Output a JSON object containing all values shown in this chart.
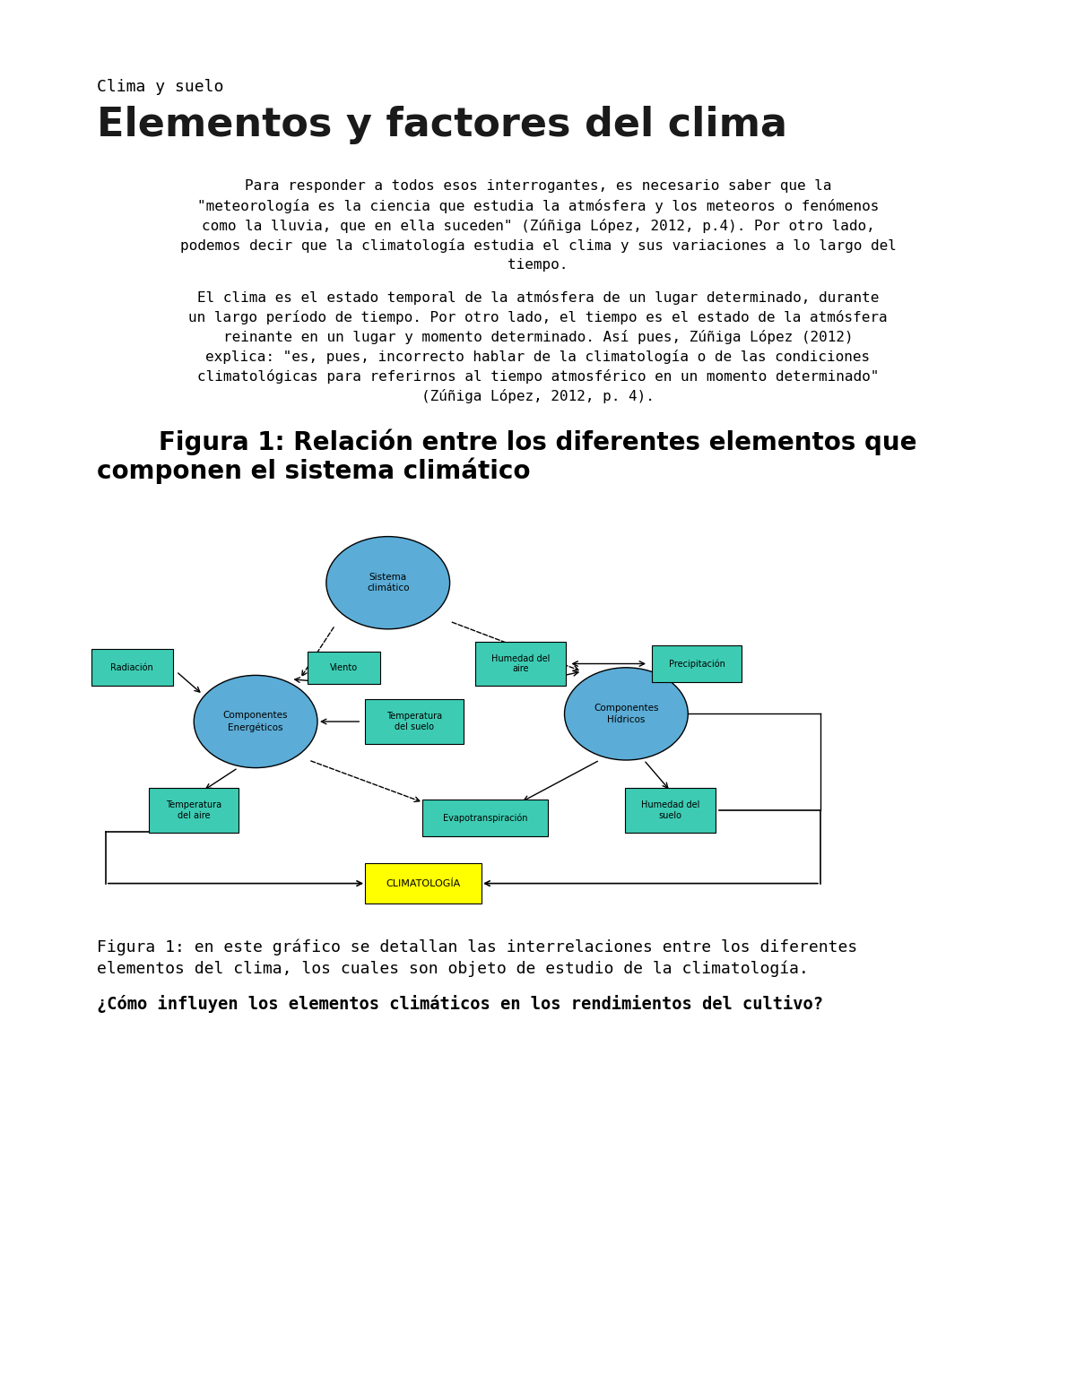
{
  "bg_color": "#ffffff",
  "page_title": "Clima y suelo",
  "main_title": "Elementos y factores del clima",
  "paragraph1_lines": [
    "Para responder a todos esos interrogantes, es necesario saber que la",
    "\"meteorología es la ciencia que estudia la atmósfera y los meteoros o fenómenos",
    "como la lluvia, que en ella suceden\" (Zúñiga López, 2012, p.4). Por otro lado,",
    "podemos decir que la climatología estudia el clima y sus variaciones a lo largo del",
    "tiempo."
  ],
  "paragraph2_lines": [
    "El clima es el estado temporal de la atmósfera de un lugar determinado, durante",
    "un largo período de tiempo. Por otro lado, el tiempo es el estado de la atmósfera",
    "reinante en un lugar y momento determinado. Así pues, Zúñiga López (2012)",
    "explica: \"es, pues, incorrecto hablar de la climatología o de las condiciones",
    "climatológicas para referirnos al tiempo atmosférico en un momento determinado\"",
    "(Zúñiga López, 2012, p. 4)."
  ],
  "figure_title_line1": "Figura 1: Relación entre los diferentes elementos que",
  "figure_title_line2": "componen el sistema climático",
  "figure_caption_lines": [
    "Figura 1: en este gráfico se detallan las interrelaciones entre los diferentes",
    "elementos del clima, los cuales son objeto de estudio de la climatología."
  ],
  "question": "¿Cómo influyen los elementos climáticos en los rendimientos del cultivo?",
  "ellipse_color": "#5bacd6",
  "green_box_color": "#3dccb3",
  "yellow_box_color": "#ffff00"
}
